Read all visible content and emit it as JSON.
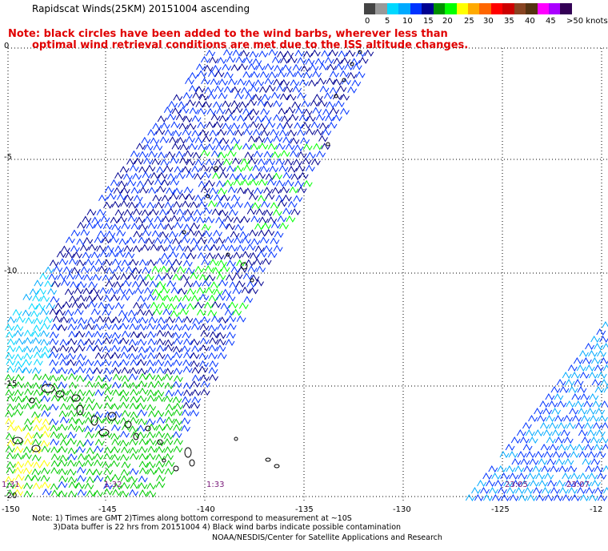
{
  "title": "Rapidscat Winds(25KM) 20151004 ascending",
  "note_line1": "Note: black circles have been added to the wind barbs, wherever less than",
  "note_line2": "optimal wind retrieval conditions are met due to the ISS altitude changes.",
  "colorbar": {
    "colors": [
      "#444444",
      "#999999",
      "#00d8ff",
      "#00aaff",
      "#0033ff",
      "#000090",
      "#009000",
      "#00ff00",
      "#ffff00",
      "#ffaa00",
      "#ff6600",
      "#ff0000",
      "#cc0000",
      "#884422",
      "#553311",
      "#ff00ff",
      "#aa00ff",
      "#330055"
    ],
    "labels": [
      "0",
      "5",
      "10",
      "15",
      "20",
      "25",
      "30",
      "35",
      "40",
      "45",
      ">50 knots"
    ]
  },
  "axes": {
    "longitude_labels": [
      "-150",
      "-145",
      "-140",
      "-135",
      "-130",
      "-125",
      "-12"
    ],
    "latitude_labels": [
      "0",
      "-5",
      "-10",
      "-15",
      "-20"
    ]
  },
  "time_labels": [
    "1:31",
    "1:32",
    "1:33",
    "23:05",
    "23:07"
  ],
  "footer": {
    "line1": "Note: 1) Times are GMT 2)Times along bottom correspond to measurement at ~10S",
    "line2": "3)Data buffer is 22 hrs from 20151004 4) Black wind barbs indicate possible contamination",
    "line3": "NOAA/NESDIS/Center for Satellite Applications and Research"
  }
}
